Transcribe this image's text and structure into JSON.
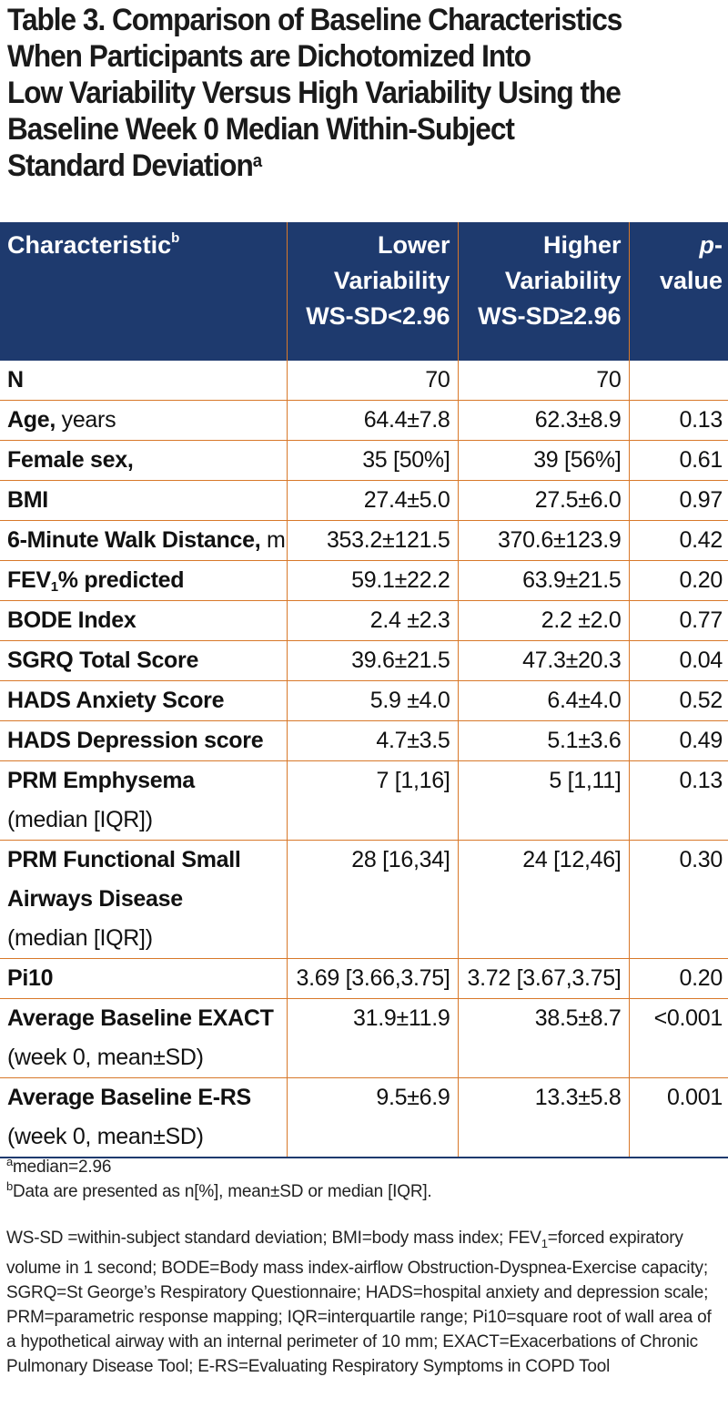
{
  "title": {
    "lines": [
      "Table 3. Comparison of Baseline Characteristics",
      "When Participants are Dichotomized Into",
      "Low Variability Versus High Variability Using the",
      "Baseline Week 0 Median Within-Subject",
      "Standard Deviation"
    ],
    "marker": "a"
  },
  "header": {
    "characteristic": "Characteristic",
    "characteristic_marker": "b",
    "lower": [
      "Lower",
      "Variability",
      "WS-SD<2.96"
    ],
    "higher": [
      "Higher",
      "Variability",
      "WS-SD≥2.96"
    ],
    "pvalue_italic": "p",
    "pvalue_rest": "-value"
  },
  "rows": [
    {
      "label_bold": "N",
      "label_rest": "",
      "lines": [],
      "lower": "70",
      "higher": "70",
      "p": ""
    },
    {
      "label_bold": "Age,",
      "label_rest": " years",
      "lines": [],
      "lower": "64.4±7.8",
      "higher": "62.3±8.9",
      "p": "0.13"
    },
    {
      "label_bold": "Female sex,",
      "label_rest": "",
      "lines": [],
      "lower": "35 [50%]",
      "higher": "39 [56%]",
      "p": "0.61"
    },
    {
      "label_bold": "BMI",
      "label_rest": "",
      "lines": [],
      "lower": "27.4±5.0",
      "higher": "27.5±6.0",
      "p": "0.97"
    },
    {
      "label_bold": "6-Minute Walk Distance,",
      "label_rest": " m",
      "lines": [],
      "lower": "353.2±121.5",
      "higher": "370.6±123.9",
      "p": "0.42"
    },
    {
      "label_bold": "FEV",
      "label_sub": "1",
      "label_bold2": "% predicted",
      "label_rest": "",
      "lines": [],
      "lower": "59.1±22.2",
      "higher": "63.9±21.5",
      "p": "0.20"
    },
    {
      "label_bold": "BODE Index",
      "label_rest": "",
      "lines": [],
      "lower": "2.4 ±2.3",
      "higher": "2.2 ±2.0",
      "p": "0.77"
    },
    {
      "label_bold": "SGRQ Total Score",
      "label_rest": "",
      "lines": [],
      "lower": "39.6±21.5",
      "higher": "47.3±20.3",
      "p": "0.04"
    },
    {
      "label_bold": "HADS Anxiety Score",
      "label_rest": "",
      "lines": [],
      "lower": "5.9 ±4.0",
      "higher": "6.4±4.0",
      "p": "0.52"
    },
    {
      "label_bold": "HADS Depression score",
      "label_rest": "",
      "lines": [],
      "lower": "4.7±3.5",
      "higher": "5.1±3.6",
      "p": "0.49"
    },
    {
      "label_bold": "PRM Emphysema",
      "label_rest": "",
      "lines": [
        "(median [IQR])"
      ],
      "lower": "7 [1,16]",
      "higher": "5 [1,11]",
      "p": "0.13"
    },
    {
      "label_bold": "PRM Functional Small",
      "label_bold_lines": [
        "Airways Disease"
      ],
      "label_rest": "",
      "lines": [
        "(median [IQR])"
      ],
      "lower": "28 [16,34]",
      "higher": "24 [12,46]",
      "p": "0.30"
    },
    {
      "label_bold": "Pi10",
      "label_rest": "",
      "lines": [],
      "lower": "3.69 [3.66,3.75]",
      "higher": "3.72 [3.67,3.75]",
      "p": "0.20"
    },
    {
      "label_bold": "Average Baseline EXACT",
      "label_rest": "",
      "lines": [
        "(week 0, mean±SD)"
      ],
      "lower": "31.9±11.9",
      "higher": "38.5±8.7",
      "p": "<0.001"
    },
    {
      "label_bold": "Average Baseline E-RS",
      "label_rest": "",
      "lines": [
        "(week 0, mean±SD)"
      ],
      "lower": "9.5±6.9",
      "higher": "13.3±5.8",
      "p": "0.001"
    }
  ],
  "footnotes": {
    "a_marker": "a",
    "a_text": "median=2.96",
    "b_marker": "b",
    "b_text": "Data are presented as n[%], mean±SD or median [IQR].",
    "abbr_part1": "WS-SD =within-subject standard deviation; BMI=body mass index; FEV",
    "abbr_sub": "1",
    "abbr_part2": "=forced expiratory volume in 1 second; BODE=Body mass index-airflow Obstruction-Dyspnea-Exercise capacity; SGRQ=St George’s Respiratory Questionnaire; HADS=hospital anxiety and depression scale; PRM=parametric response mapping; IQR=interquartile range; Pi10=square root of wall area of a hypothetical airway with an internal perimeter of 10 mm; EXACT=Exacerbations of Chronic Pulmonary Disease Tool; E-RS=Evaluating Respiratory Symptoms in COPD Tool"
  }
}
